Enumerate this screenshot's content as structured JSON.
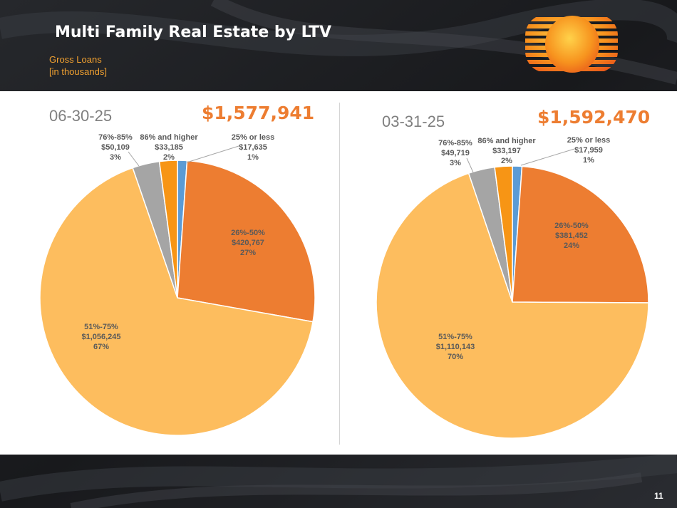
{
  "slide": {
    "title": "Multi Family Real Estate by LTV",
    "subtitle_line1": "Gross Loans",
    "subtitle_line2": "[in thousands]",
    "page_number": "11",
    "logo_icon": "striped-sun-logo-icon"
  },
  "colors": {
    "ltv_25_or_less": "#5b9bd5",
    "ltv_26_50": "#ed7d31",
    "ltv_51_75": "#fdbd5e",
    "ltv_76_85": "#a5a5a5",
    "ltv_86_higher": "#f79515",
    "total_text": "#ed7d31"
  },
  "chart_data": [
    {
      "type": "pie",
      "title": "06-30-25",
      "total": "$1,577,941",
      "slices": [
        {
          "name": "25% or less",
          "value": 17635,
          "value_label": "$17,635",
          "pct_label": "1%"
        },
        {
          "name": "26%-50%",
          "value": 420767,
          "value_label": "$420,767",
          "pct_label": "27%"
        },
        {
          "name": "51%-75%",
          "value": 1056245,
          "value_label": "$1,056,245",
          "pct_label": "67%"
        },
        {
          "name": "76%-85%",
          "value": 50109,
          "value_label": "$50,109",
          "pct_label": "3%"
        },
        {
          "name": "86% and higher",
          "value": 33185,
          "value_label": "$33,185",
          "pct_label": "2%"
        }
      ]
    },
    {
      "type": "pie",
      "title": "03-31-25",
      "total": "$1,592,470",
      "slices": [
        {
          "name": "25% or less",
          "value": 17959,
          "value_label": "$17,959",
          "pct_label": "1%"
        },
        {
          "name": "26%-50%",
          "value": 381452,
          "value_label": "$381,452",
          "pct_label": "24%"
        },
        {
          "name": "51%-75%",
          "value": 1110143,
          "value_label": "$1,110,143",
          "pct_label": "70%"
        },
        {
          "name": "76%-85%",
          "value": 49719,
          "value_label": "$49,719",
          "pct_label": "3%"
        },
        {
          "name": "86% and higher",
          "value": 33197,
          "value_label": "$33,197",
          "pct_label": "2%"
        }
      ]
    }
  ]
}
